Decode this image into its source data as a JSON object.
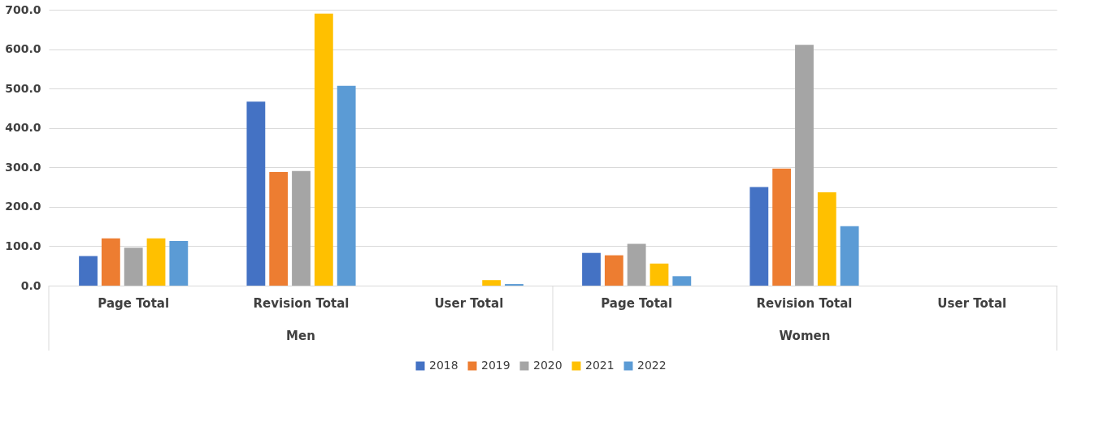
{
  "chart_data": {
    "type": "bar",
    "categories": [
      "Page Total",
      "Revision Total",
      "User Total",
      "Page Total",
      "Revision Total",
      "User Total"
    ],
    "series": [
      {
        "name": "2018",
        "color": "#4472c4",
        "values": [
          75,
          467,
          0,
          83,
          250,
          0
        ]
      },
      {
        "name": "2019",
        "color": "#ed7d31",
        "values": [
          120,
          288,
          0,
          77,
          297,
          0
        ]
      },
      {
        "name": "2020",
        "color": "#a5a5a5",
        "values": [
          96,
          291,
          0,
          106,
          611,
          0
        ]
      },
      {
        "name": "2021",
        "color": "#ffc000",
        "values": [
          120,
          690,
          14,
          56,
          237,
          0
        ]
      },
      {
        "name": "2022",
        "color": "#5b9bd5",
        "values": [
          113,
          507,
          4,
          24,
          151,
          0
        ]
      }
    ],
    "annotations": [
      "Men",
      "Women"
    ],
    "ylim": [
      0,
      700
    ],
    "yticks": [
      {
        "value": 0,
        "label": "0.0"
      },
      {
        "value": 100,
        "label": "100.0"
      },
      {
        "value": 200,
        "label": "200.0"
      },
      {
        "value": 300,
        "label": "300.0"
      },
      {
        "value": 400,
        "label": "400.0"
      },
      {
        "value": 500,
        "label": "500.0"
      },
      {
        "value": 600,
        "label": "600.0"
      },
      {
        "value": 700,
        "label": "700.0"
      }
    ],
    "grid": "y",
    "legend": "bottom"
  }
}
